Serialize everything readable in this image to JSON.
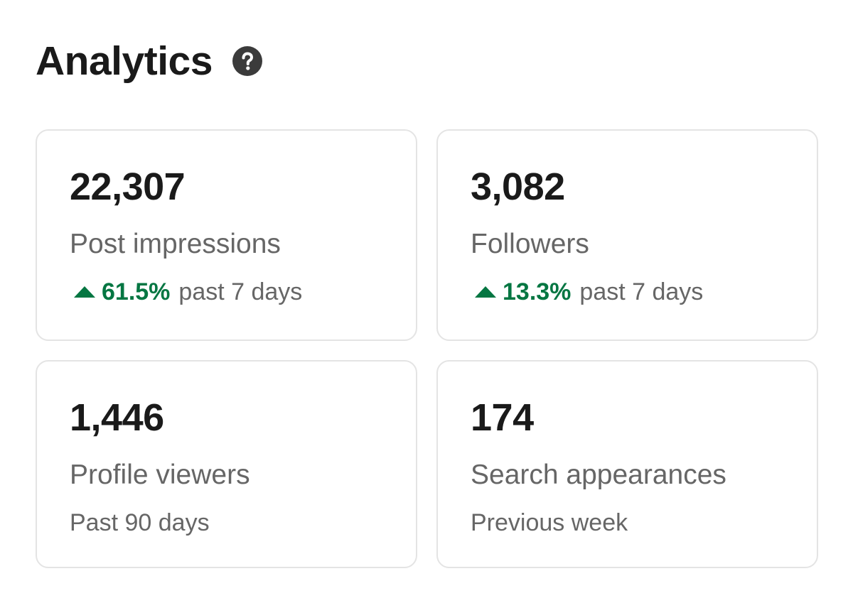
{
  "header": {
    "title": "Analytics",
    "help_icon": "question-mark-icon"
  },
  "colors": {
    "positive": "#057642",
    "text_primary": "#1a1a1a",
    "text_secondary": "#666666",
    "card_border": "#e4e4e4"
  },
  "cards": [
    {
      "value": "22,307",
      "label": "Post impressions",
      "change": {
        "icon": "arrow-up-icon",
        "percent": "61.5%",
        "period": "past 7 days"
      }
    },
    {
      "value": "3,082",
      "label": "Followers",
      "change": {
        "icon": "arrow-up-icon",
        "percent": "13.3%",
        "period": "past 7 days"
      }
    },
    {
      "value": "1,446",
      "label": "Profile viewers",
      "period": "Past 90 days"
    },
    {
      "value": "174",
      "label": "Search appearances",
      "period": "Previous week"
    }
  ]
}
